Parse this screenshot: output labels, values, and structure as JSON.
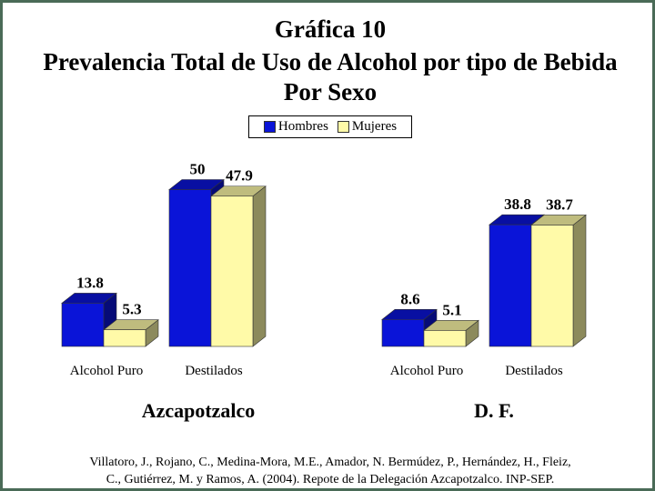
{
  "chart_data": {
    "type": "bar",
    "title": "Gráfica 10",
    "subtitle_lines": [
      "Prevalencia Total de Uso de Alcohol por tipo de Bebida",
      "Por Sexo"
    ],
    "legend": {
      "placement": "top-center",
      "entries": [
        "Hombres",
        "Mujeres"
      ]
    },
    "colors": {
      "Hombres": "#0a14d8",
      "Mujeres": "#fffaa8"
    },
    "panels": [
      {
        "label": "Azcapotzalco",
        "categories": [
          "Alcohol Puro",
          "Destilados"
        ],
        "series": [
          {
            "name": "Hombres",
            "values": [
              13.8,
              50
            ]
          },
          {
            "name": "Mujeres",
            "values": [
              5.3,
              47.9
            ]
          }
        ]
      },
      {
        "label": "D. F.",
        "categories": [
          "Alcohol Puro",
          "Destilados"
        ],
        "series": [
          {
            "name": "Hombres",
            "values": [
              8.6,
              38.8
            ]
          },
          {
            "name": "Mujeres",
            "values": [
              5.1,
              38.7
            ]
          }
        ]
      }
    ],
    "grid": false
  },
  "source": {
    "line1": "Villatoro, J., Rojano, C., Medina-Mora, M.E., Amador, N. Bermúdez, P., Hernández, H., Fleiz,",
    "line2": "C., Gutiérrez, M. y Ramos, A. (2004). Repote de la Delegación Azcapotzalco. INP-SEP."
  }
}
